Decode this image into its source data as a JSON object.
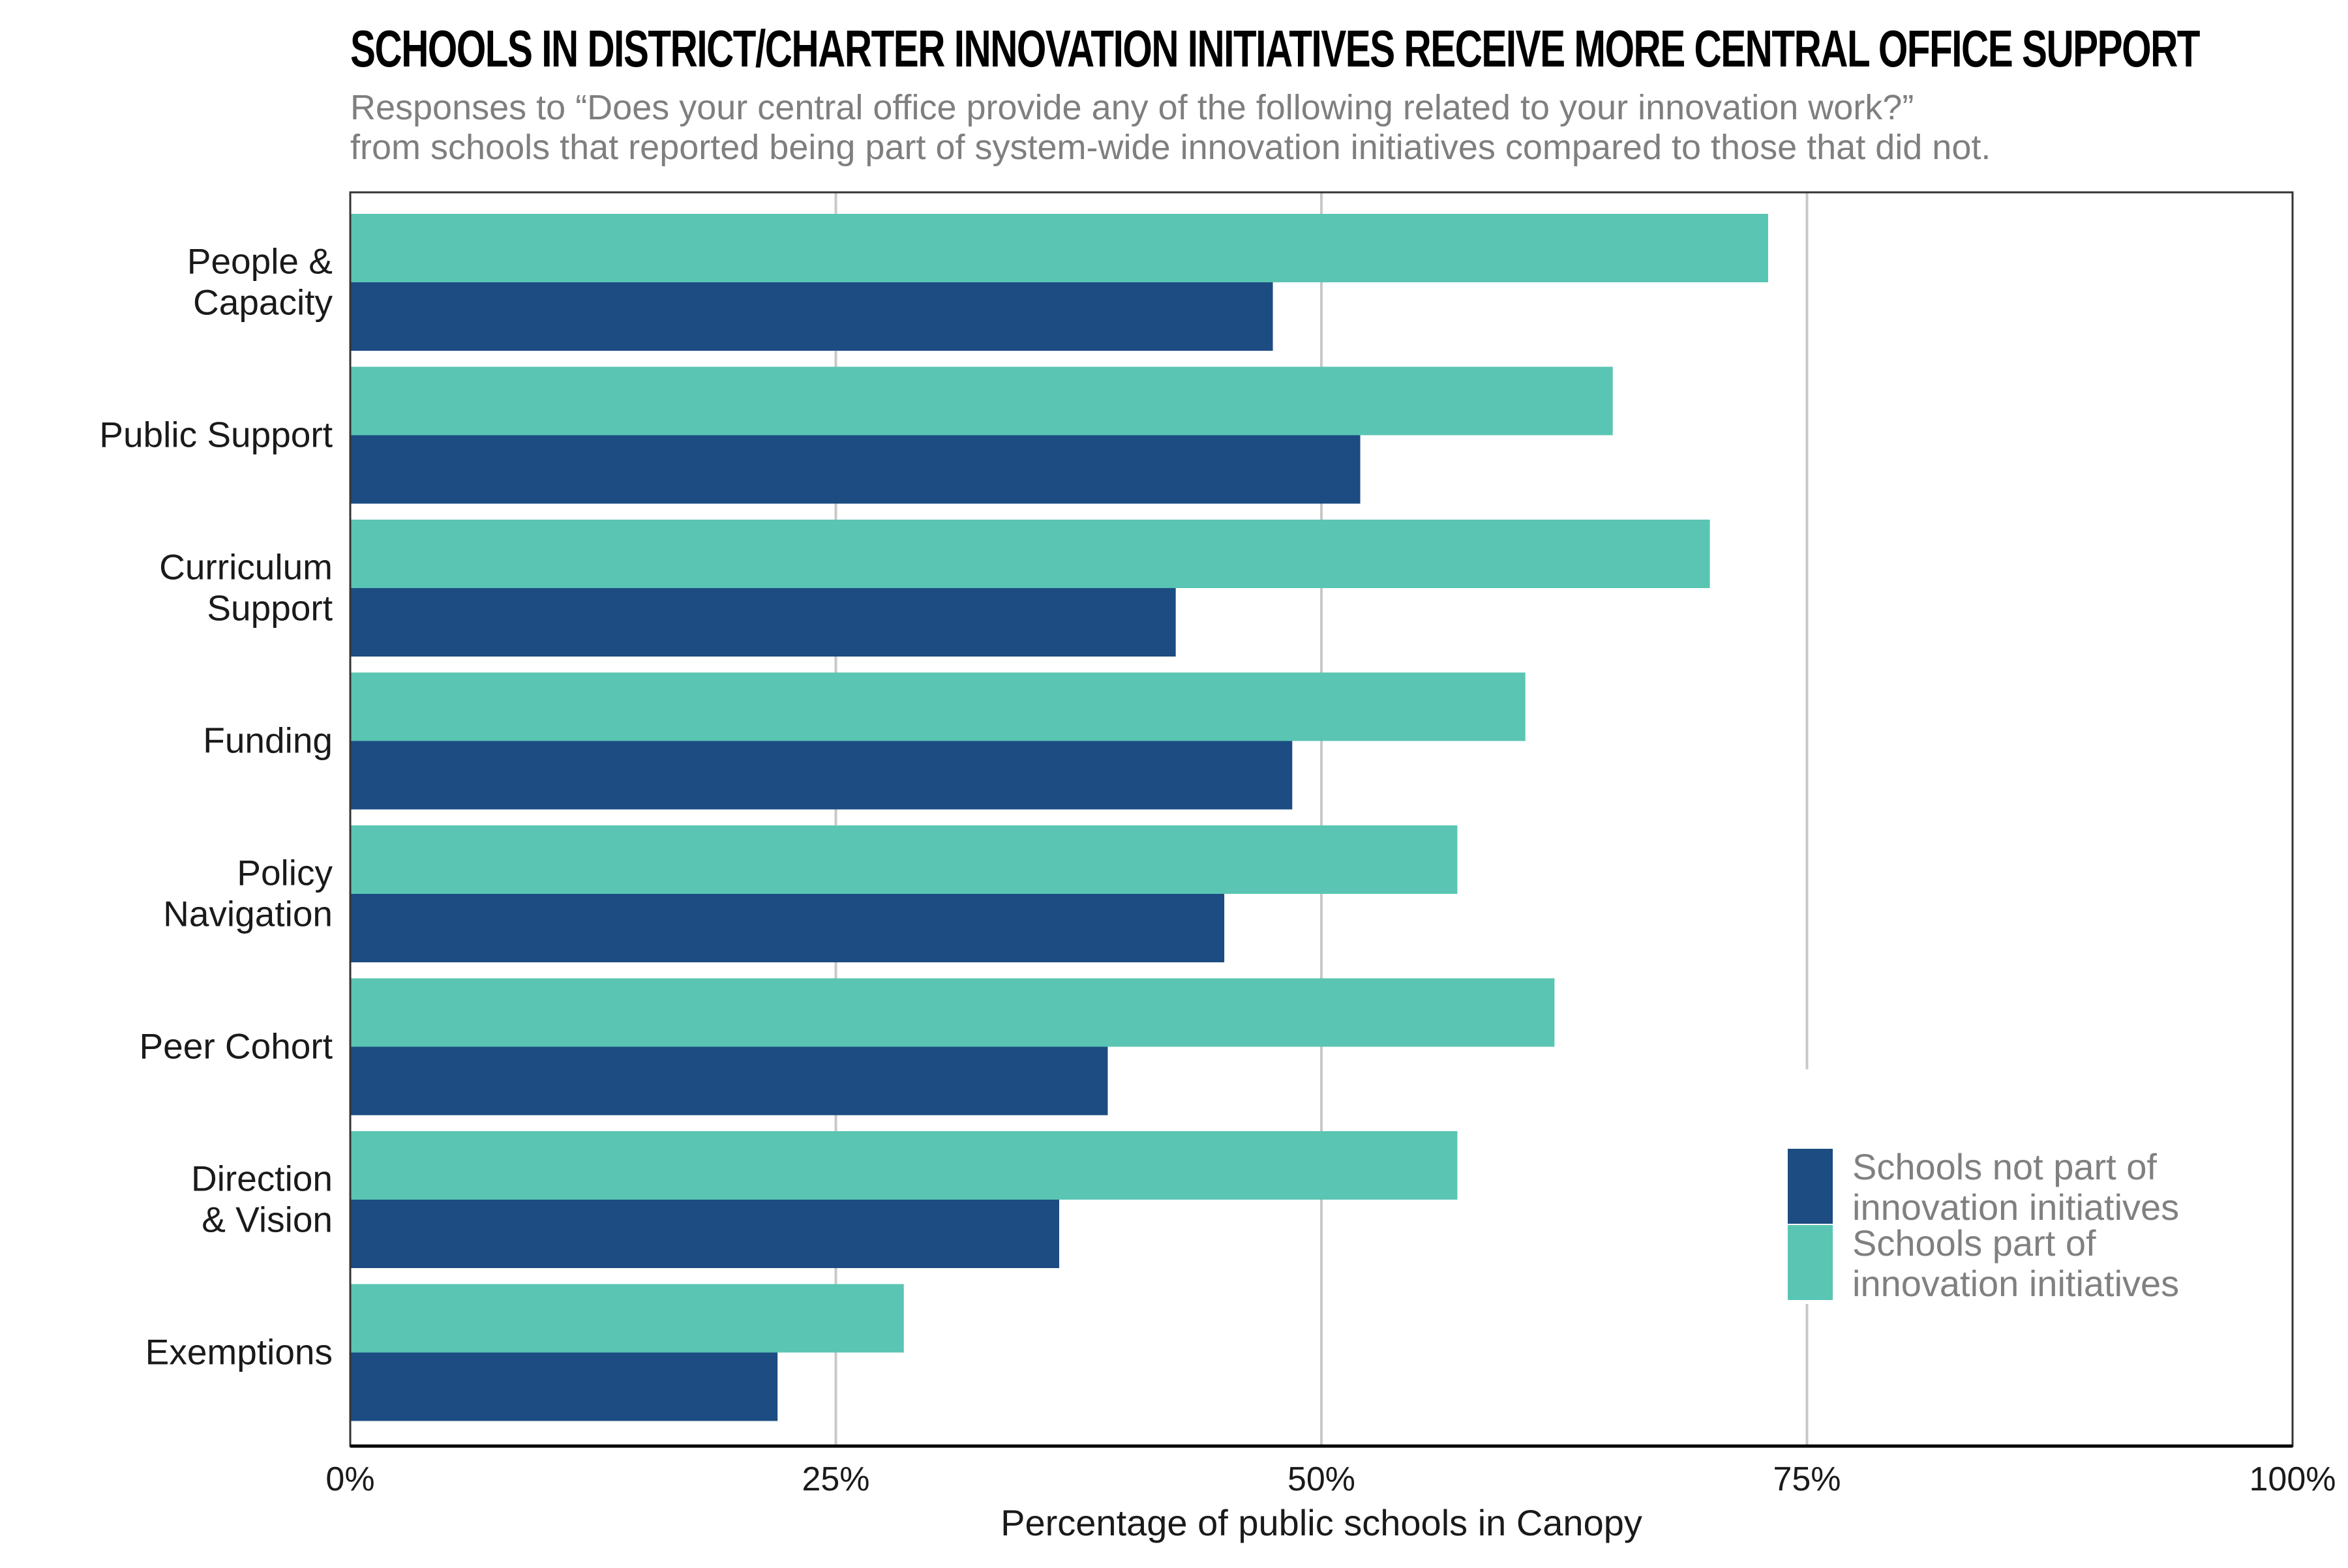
{
  "chart_data": {
    "type": "bar",
    "orientation": "horizontal",
    "title": "SCHOOLS IN DISTRICT/CHARTER INNOVATION INITIATIVES RECEIVE MORE CENTRAL OFFICE SUPPORT",
    "subtitle": [
      "Responses to “Does your central office provide any of the following related to your innovation work?”",
      "from schools that reported being part of system-wide innovation initiatives compared to those that did not."
    ],
    "categories": [
      [
        "People &",
        "Capacity"
      ],
      [
        "Public Support"
      ],
      [
        "Curriculum",
        "Support"
      ],
      [
        "Funding"
      ],
      [
        "Policy",
        "Navigation"
      ],
      [
        "Peer Cohort"
      ],
      [
        "Direction",
        "& Vision"
      ],
      [
        "Exemptions"
      ]
    ],
    "series": [
      {
        "name": "Schools part of innovation initiatives",
        "color": "#5ac5b3",
        "values": [
          73,
          65,
          70,
          60.5,
          57,
          62,
          57,
          28.5
        ]
      },
      {
        "name": "Schools not part of innovation initiatives",
        "color": "#1c4c82",
        "values": [
          47.5,
          52,
          42.5,
          48.5,
          45,
          39,
          36.5,
          22
        ]
      }
    ],
    "xlabel": "Percentage of public schools in Canopy",
    "xlim": [
      0,
      100
    ],
    "xticks": [
      0,
      25,
      50,
      75,
      100
    ],
    "xtick_labels": [
      "0%",
      "25%",
      "50%",
      "75%",
      "100%"
    ],
    "grid": true,
    "legend": {
      "placement": "bottom-right",
      "entries": [
        {
          "lines": [
            "Schools not part of",
            "innovation initiatives"
          ],
          "color": "#1c4c82"
        },
        {
          "lines": [
            "Schools part of",
            "innovation initiatives"
          ],
          "color": "#5ac5b3"
        }
      ]
    }
  }
}
